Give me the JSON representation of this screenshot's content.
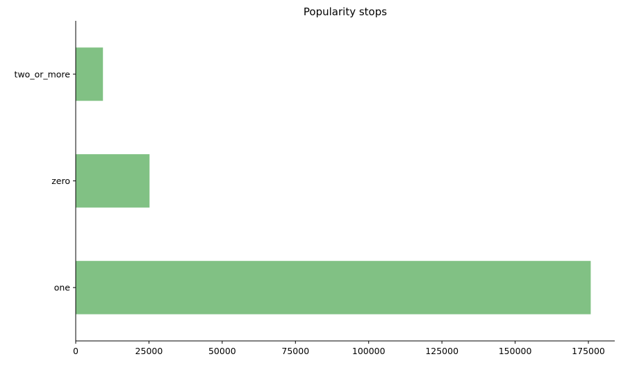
{
  "chart_data": {
    "type": "bar",
    "orientation": "horizontal",
    "title": "Popularity stops",
    "xlabel": "",
    "ylabel": "",
    "categories": [
      "one",
      "zero",
      "two_or_more"
    ],
    "values": [
      175800,
      25200,
      9300
    ],
    "xlim": [
      0,
      184000
    ],
    "xticks": [
      0,
      25000,
      50000,
      75000,
      100000,
      125000,
      150000,
      175000
    ],
    "grid": false,
    "legend": "none",
    "bar_color": "#81c184",
    "axis_color": "#000000"
  }
}
